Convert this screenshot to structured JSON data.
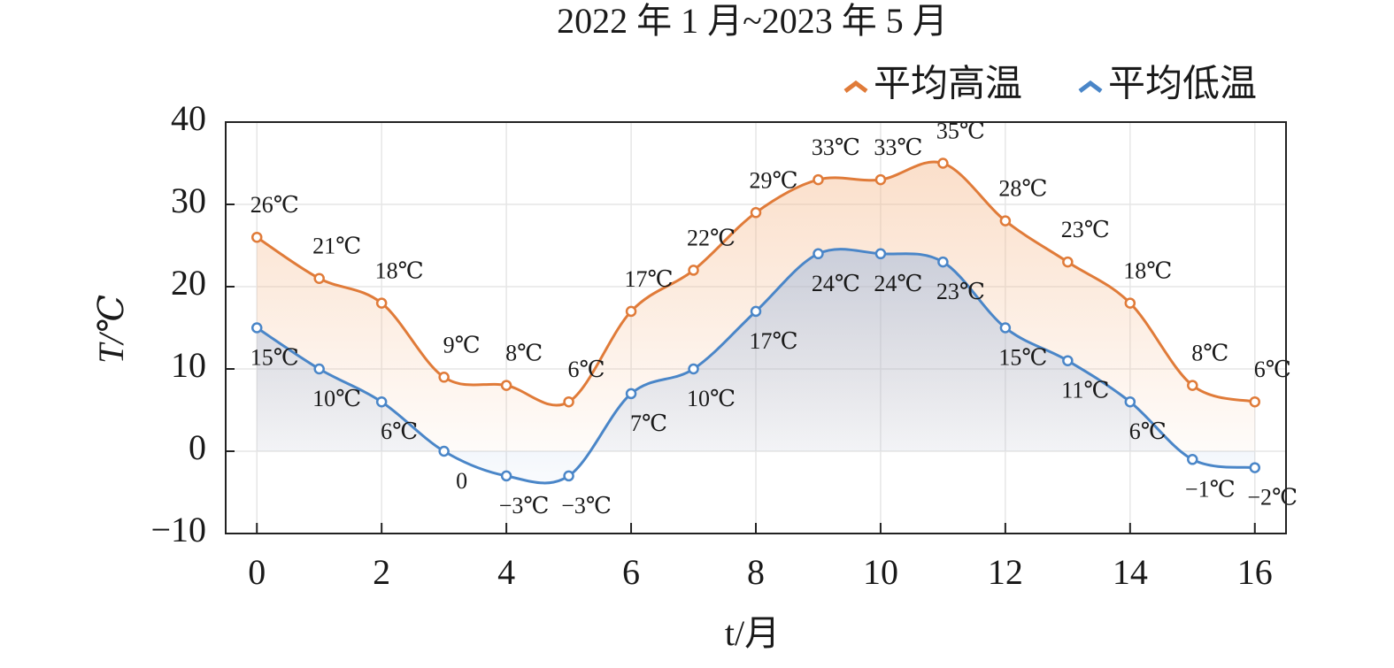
{
  "chart_data": {
    "type": "line",
    "title": "2022 年 1 月~2023 年 5 月",
    "xlabel": "t/月",
    "ylabel": "T/℃",
    "x": [
      0,
      1,
      2,
      3,
      4,
      5,
      6,
      7,
      8,
      9,
      10,
      11,
      12,
      13,
      14,
      15,
      16
    ],
    "series": [
      {
        "name": "平均高温",
        "color": "#e07b39",
        "values": [
          26,
          21,
          18,
          9,
          8,
          6,
          17,
          22,
          29,
          33,
          33,
          35,
          28,
          23,
          18,
          8,
          6
        ],
        "value_labels": [
          "26℃",
          "21℃",
          "18℃",
          "9℃",
          "8℃",
          "6℃",
          "17℃",
          "22℃",
          "29℃",
          "33℃",
          "33℃",
          "35℃",
          "28℃",
          "23℃",
          "18℃",
          "8℃",
          "6℃"
        ]
      },
      {
        "name": "平均低温",
        "color": "#4a86c8",
        "values": [
          15,
          10,
          6,
          0,
          -3,
          -3,
          7,
          10,
          17,
          24,
          24,
          23,
          15,
          11,
          6,
          -1,
          -2
        ],
        "value_labels": [
          "15℃",
          "10℃",
          "6℃",
          "0",
          "−3℃",
          "−3℃",
          "7℃",
          "10℃",
          "17℃",
          "24℃",
          "24℃",
          "23℃",
          "15℃",
          "11℃",
          "6℃",
          "−1℃",
          "−2℃"
        ]
      }
    ],
    "xlim": [
      -0.5,
      16.5
    ],
    "xticks": [
      0,
      2,
      4,
      6,
      8,
      10,
      12,
      14,
      16
    ],
    "ylim": [
      -10,
      40
    ],
    "yticks": [
      {
        "value": -10,
        "label": "−10"
      },
      0,
      10,
      20,
      30,
      40
    ],
    "grid": true,
    "legend": "upper right"
  }
}
